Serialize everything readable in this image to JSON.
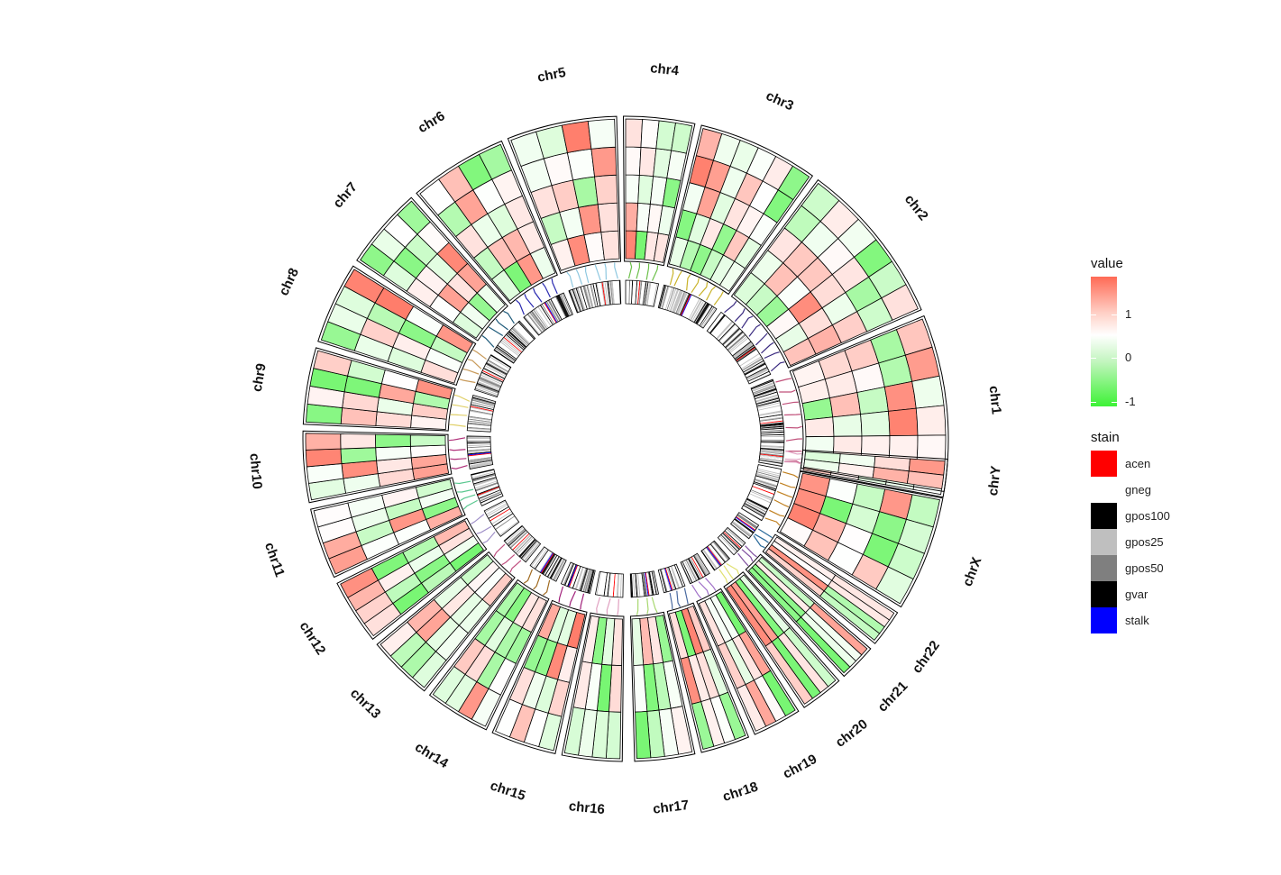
{
  "chart_data": {
    "type": "heatmap",
    "layout": "circular",
    "chromosomes": [
      "chr1",
      "chr2",
      "chr3",
      "chr4",
      "chr5",
      "chr6",
      "chr7",
      "chr8",
      "chr9",
      "chr10",
      "chr11",
      "chr12",
      "chr13",
      "chr14",
      "chr15",
      "chr16",
      "chr17",
      "chr18",
      "chr19",
      "chr20",
      "chr21",
      "chr22",
      "chrX",
      "chrY"
    ],
    "tracks": [
      "heatmap",
      "link-lines",
      "ideogram"
    ],
    "value_legend": {
      "title": "value",
      "ticks": [
        "1",
        "0",
        "-1"
      ],
      "range": [
        -1.5,
        1.3
      ],
      "colors": {
        "high": "#ff6a55",
        "mid": "#ffffff",
        "low": "#3df236"
      }
    },
    "stain_legend": {
      "title": "stain",
      "items": [
        {
          "label": "acen",
          "color": "#ff0000"
        },
        {
          "label": "gneg",
          "color": "#ffffff"
        },
        {
          "label": "gpos100",
          "color": "#000000"
        },
        {
          "label": "gpos25",
          "color": "#bfbfbf"
        },
        {
          "label": "gpos50",
          "color": "#7f7f7f"
        },
        {
          "label": "gvar",
          "color": "#000000"
        },
        {
          "label": "stalk",
          "color": "#0000ff"
        }
      ]
    }
  }
}
